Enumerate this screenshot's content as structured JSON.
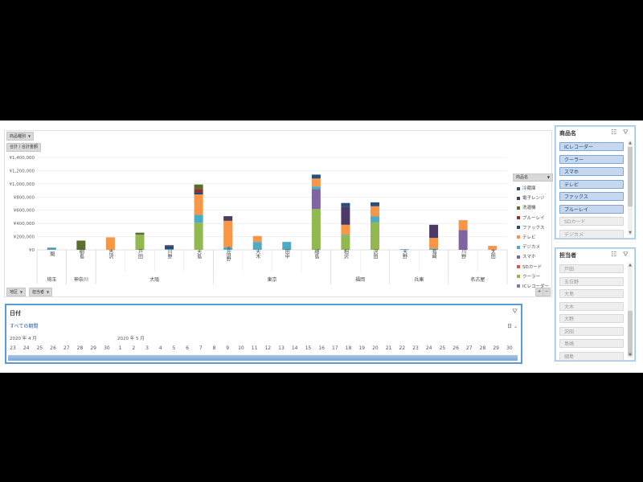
{
  "pivot": {
    "row_field": "商品種別",
    "value_field": "合計 / 合計金額",
    "axis_field_1": "地区",
    "axis_field_2": "担当者",
    "plus_label": "+",
    "minus_label": "−"
  },
  "chart_data": {
    "type": "bar",
    "stacked": true,
    "ylim": [
      0,
      1400000
    ],
    "yticks": [
      "¥0",
      "¥200,000",
      "¥400,000",
      "¥600,000",
      "¥800,000",
      "¥1,000,000",
      "¥1,200,000",
      "¥1,400,000"
    ],
    "categories": [
      "関",
      "細島",
      "吉沢",
      "戸田",
      "川野",
      "大島",
      "五佰野",
      "大木",
      "田中",
      "細島",
      "相沢",
      "沢田",
      "大野",
      "島崎",
      "川野",
      "太田"
    ],
    "regions": [
      {
        "name": "埼玉",
        "count": 1
      },
      {
        "name": "神奈川",
        "count": 1
      },
      {
        "name": "大阪",
        "count": 4
      },
      {
        "name": "東京",
        "count": 4
      },
      {
        "name": "福岡",
        "count": 2
      },
      {
        "name": "兵庫",
        "count": 2
      },
      {
        "name": "名古屋",
        "count": 2
      }
    ],
    "legend_title": "商品名",
    "series": [
      {
        "name": "ICレコーダー",
        "color": "#8c6fb3",
        "values": [
          0,
          0,
          0,
          0,
          0,
          0,
          0,
          0,
          0,
          0,
          0,
          0,
          0,
          0,
          0,
          0
        ]
      },
      {
        "name": "クーラー",
        "color": "#92b850",
        "values": [
          0,
          0,
          0,
          230000,
          0,
          410000,
          0,
          0,
          0,
          620000,
          220000,
          420000,
          0,
          0,
          0,
          0
        ]
      },
      {
        "name": "SDカード",
        "color": "#e6533c",
        "values": [
          0,
          0,
          0,
          0,
          0,
          0,
          0,
          0,
          0,
          0,
          0,
          0,
          0,
          0,
          0,
          0
        ]
      },
      {
        "name": "スマホ",
        "color": "#8064a2",
        "values": [
          0,
          0,
          0,
          0,
          0,
          0,
          0,
          0,
          0,
          300000,
          0,
          0,
          0,
          0,
          300000,
          0
        ]
      },
      {
        "name": "デジカメ",
        "color": "#4bacc6",
        "values": [
          20000,
          0,
          0,
          0,
          10000,
          120000,
          40000,
          120000,
          120000,
          40000,
          10000,
          90000,
          10000,
          20000,
          0,
          0
        ]
      },
      {
        "name": "テレビ",
        "color": "#f79646",
        "values": [
          0,
          0,
          190000,
          0,
          0,
          310000,
          400000,
          90000,
          0,
          120000,
          150000,
          150000,
          0,
          160000,
          150000,
          60000
        ]
      },
      {
        "name": "ファックス",
        "color": "#1f4e79",
        "values": [
          10000,
          0,
          0,
          0,
          40000,
          30000,
          0,
          0,
          0,
          0,
          0,
          0,
          0,
          0,
          0,
          0
        ]
      },
      {
        "name": "ブルーレイ",
        "color": "#9e2a2a",
        "values": [
          0,
          0,
          0,
          0,
          0,
          50000,
          0,
          0,
          0,
          0,
          0,
          0,
          0,
          0,
          0,
          0
        ]
      },
      {
        "name": "洗濯機",
        "color": "#5b6e2e",
        "values": [
          0,
          140000,
          0,
          30000,
          0,
          70000,
          0,
          0,
          0,
          0,
          0,
          0,
          0,
          0,
          0,
          0
        ]
      },
      {
        "name": "電子レンジ",
        "color": "#4b3a63",
        "values": [
          0,
          0,
          0,
          0,
          20000,
          0,
          70000,
          0,
          0,
          0,
          270000,
          0,
          0,
          200000,
          0,
          0
        ]
      },
      {
        "name": "冷蔵庫",
        "color": "#2a4d7a",
        "values": [
          0,
          0,
          0,
          0,
          0,
          0,
          0,
          0,
          0,
          60000,
          60000,
          60000,
          0,
          0,
          0,
          0
        ]
      }
    ]
  },
  "timeline": {
    "title": "日付",
    "period": "すべての期間",
    "unit": "日",
    "month1": "2020 年 4 月",
    "month2": "2020 年 5 月",
    "days": [
      "23",
      "24",
      "25",
      "26",
      "27",
      "28",
      "29",
      "30",
      "1",
      "2",
      "3",
      "4",
      "5",
      "6",
      "7",
      "8",
      "9",
      "10",
      "11",
      "12",
      "13",
      "14",
      "15",
      "16",
      "17",
      "18",
      "19",
      "20",
      "21",
      "22",
      "23",
      "24",
      "25",
      "26",
      "27",
      "28",
      "29",
      "30"
    ]
  },
  "slicer_product": {
    "title": "商品名",
    "items": [
      {
        "label": "ICレコーダー",
        "selected": true
      },
      {
        "label": "クーラー",
        "selected": true
      },
      {
        "label": "スマホ",
        "selected": true
      },
      {
        "label": "テレビ",
        "selected": true
      },
      {
        "label": "ファックス",
        "selected": true
      },
      {
        "label": "ブルーレイ",
        "selected": true
      },
      {
        "label": "SDカード",
        "selected": false
      },
      {
        "label": "デジカメ",
        "selected": false
      }
    ]
  },
  "slicer_staff": {
    "title": "担当者",
    "items": [
      {
        "label": "戸田",
        "selected": false
      },
      {
        "label": "五位野",
        "selected": false
      },
      {
        "label": "大島",
        "selected": false
      },
      {
        "label": "大木",
        "selected": false
      },
      {
        "label": "大野",
        "selected": false
      },
      {
        "label": "沢田",
        "selected": false
      },
      {
        "label": "島崎",
        "selected": false
      },
      {
        "label": "細島",
        "selected": false
      }
    ]
  }
}
